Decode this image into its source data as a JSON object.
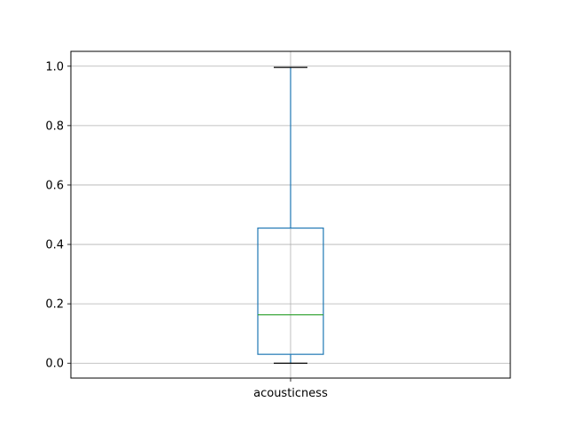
{
  "chart_data": {
    "type": "box",
    "title": "",
    "xlabel": "",
    "ylabel": "",
    "categories": [
      "acousticness"
    ],
    "boxes": [
      {
        "label": "acousticness",
        "min": 0.0,
        "q1": 0.03,
        "median": 0.163,
        "q3": 0.455,
        "max": 0.996
      }
    ],
    "ylim": [
      -0.05,
      1.05
    ],
    "y_ticks": [
      0.0,
      0.2,
      0.4,
      0.6,
      0.8,
      1.0
    ],
    "y_tick_labels": [
      "0.0",
      "0.2",
      "0.4",
      "0.6",
      "0.8",
      "1.0"
    ],
    "grid": true,
    "colors": {
      "box": "#1f77b4",
      "median": "#2ca02c",
      "caps": "#000000",
      "grid": "#b0b0b0"
    }
  }
}
